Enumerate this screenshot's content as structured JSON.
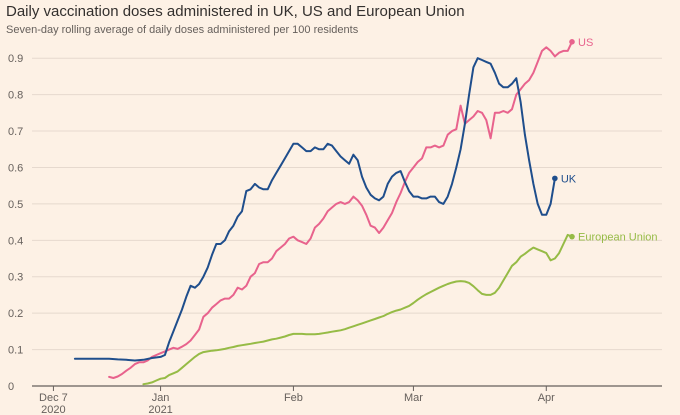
{
  "header": {
    "title": "Daily vaccination doses administered in UK, US and European Union",
    "subtitle": "Seven-day rolling average of daily doses administered per 100 residents"
  },
  "chart_data": {
    "type": "line",
    "title": "Daily vaccination doses administered in UK, US and European Union",
    "subtitle": "Seven-day rolling average of daily doses administered per 100 residents",
    "xlabel": "",
    "ylabel": "",
    "ylim": [
      0,
      0.95
    ],
    "yticks": [
      0,
      0.1,
      0.2,
      0.3,
      0.4,
      0.5,
      0.6,
      0.7,
      0.8,
      0.9
    ],
    "ytick_labels": [
      "0",
      "0.1",
      "0.2",
      "0.3",
      "0.4",
      "0.5",
      "0.6",
      "0.7",
      "0.8",
      "0.9"
    ],
    "xlim_days": [
      -30,
      117
    ],
    "x_unit": "days since 2021-01-01",
    "xticks": [
      {
        "day": -25,
        "line1": "Dec 7",
        "line2": "2020"
      },
      {
        "day": 0,
        "line1": "Jan",
        "line2": "2021"
      },
      {
        "day": 31,
        "line1": "Feb",
        "line2": ""
      },
      {
        "day": 59,
        "line1": "Mar",
        "line2": ""
      },
      {
        "day": 90,
        "line1": "Apr",
        "line2": ""
      }
    ],
    "grid": true,
    "legend": "direct labels at line ends",
    "series": [
      {
        "name": "US",
        "color": "#e8638d",
        "points": [
          [
            -12,
            0.025
          ],
          [
            -11,
            0.022
          ],
          [
            -10,
            0.026
          ],
          [
            -9,
            0.033
          ],
          [
            -8,
            0.042
          ],
          [
            -7,
            0.05
          ],
          [
            -6,
            0.06
          ],
          [
            -5,
            0.065
          ],
          [
            -4,
            0.065
          ],
          [
            -3,
            0.07
          ],
          [
            -2,
            0.08
          ],
          [
            -1,
            0.085
          ],
          [
            0,
            0.09
          ],
          [
            1,
            0.095
          ],
          [
            2,
            0.1
          ],
          [
            3,
            0.105
          ],
          [
            4,
            0.102
          ],
          [
            5,
            0.108
          ],
          [
            6,
            0.115
          ],
          [
            7,
            0.125
          ],
          [
            8,
            0.14
          ],
          [
            9,
            0.155
          ],
          [
            10,
            0.19
          ],
          [
            11,
            0.2
          ],
          [
            12,
            0.215
          ],
          [
            13,
            0.225
          ],
          [
            14,
            0.235
          ],
          [
            15,
            0.24
          ],
          [
            16,
            0.24
          ],
          [
            17,
            0.25
          ],
          [
            18,
            0.27
          ],
          [
            19,
            0.265
          ],
          [
            20,
            0.275
          ],
          [
            21,
            0.3
          ],
          [
            22,
            0.31
          ],
          [
            23,
            0.335
          ],
          [
            24,
            0.34
          ],
          [
            25,
            0.34
          ],
          [
            26,
            0.35
          ],
          [
            27,
            0.37
          ],
          [
            28,
            0.38
          ],
          [
            29,
            0.39
          ],
          [
            30,
            0.405
          ],
          [
            31,
            0.41
          ],
          [
            32,
            0.4
          ],
          [
            33,
            0.395
          ],
          [
            34,
            0.39
          ],
          [
            35,
            0.405
          ],
          [
            36,
            0.435
          ],
          [
            37,
            0.445
          ],
          [
            38,
            0.46
          ],
          [
            39,
            0.48
          ],
          [
            40,
            0.49
          ],
          [
            41,
            0.5
          ],
          [
            42,
            0.505
          ],
          [
            43,
            0.5
          ],
          [
            44,
            0.505
          ],
          [
            45,
            0.52
          ],
          [
            46,
            0.51
          ],
          [
            47,
            0.495
          ],
          [
            48,
            0.47
          ],
          [
            49,
            0.44
          ],
          [
            50,
            0.435
          ],
          [
            51,
            0.42
          ],
          [
            52,
            0.435
          ],
          [
            53,
            0.455
          ],
          [
            54,
            0.475
          ],
          [
            55,
            0.505
          ],
          [
            56,
            0.53
          ],
          [
            57,
            0.56
          ],
          [
            58,
            0.585
          ],
          [
            59,
            0.6
          ],
          [
            60,
            0.615
          ],
          [
            61,
            0.625
          ],
          [
            62,
            0.655
          ],
          [
            63,
            0.655
          ],
          [
            64,
            0.66
          ],
          [
            65,
            0.655
          ],
          [
            66,
            0.66
          ],
          [
            67,
            0.69
          ],
          [
            68,
            0.7
          ],
          [
            69,
            0.705
          ],
          [
            70,
            0.77
          ],
          [
            71,
            0.72
          ],
          [
            72,
            0.73
          ],
          [
            73,
            0.74
          ],
          [
            74,
            0.755
          ],
          [
            75,
            0.75
          ],
          [
            76,
            0.73
          ],
          [
            77,
            0.68
          ],
          [
            78,
            0.75
          ],
          [
            79,
            0.75
          ],
          [
            80,
            0.755
          ],
          [
            81,
            0.75
          ],
          [
            82,
            0.76
          ],
          [
            83,
            0.8
          ],
          [
            84,
            0.815
          ],
          [
            85,
            0.83
          ],
          [
            86,
            0.84
          ],
          [
            87,
            0.86
          ],
          [
            88,
            0.89
          ],
          [
            89,
            0.92
          ],
          [
            90,
            0.93
          ],
          [
            91,
            0.92
          ],
          [
            92,
            0.905
          ],
          [
            93,
            0.915
          ],
          [
            94,
            0.92
          ],
          [
            95,
            0.92
          ],
          [
            96,
            0.945
          ]
        ]
      },
      {
        "name": "UK",
        "color": "#1f4e8c",
        "points": [
          [
            -20,
            0.075
          ],
          [
            -18,
            0.075
          ],
          [
            -16,
            0.075
          ],
          [
            -14,
            0.075
          ],
          [
            -12,
            0.075
          ],
          [
            -10,
            0.073
          ],
          [
            -8,
            0.072
          ],
          [
            -6,
            0.07
          ],
          [
            -4,
            0.072
          ],
          [
            -2,
            0.077
          ],
          [
            0,
            0.08
          ],
          [
            1,
            0.085
          ],
          [
            2,
            0.12
          ],
          [
            3,
            0.15
          ],
          [
            4,
            0.18
          ],
          [
            5,
            0.21
          ],
          [
            6,
            0.245
          ],
          [
            7,
            0.275
          ],
          [
            8,
            0.27
          ],
          [
            9,
            0.28
          ],
          [
            10,
            0.3
          ],
          [
            11,
            0.325
          ],
          [
            12,
            0.36
          ],
          [
            13,
            0.39
          ],
          [
            14,
            0.39
          ],
          [
            15,
            0.4
          ],
          [
            16,
            0.425
          ],
          [
            17,
            0.44
          ],
          [
            18,
            0.465
          ],
          [
            19,
            0.48
          ],
          [
            20,
            0.535
          ],
          [
            21,
            0.54
          ],
          [
            22,
            0.555
          ],
          [
            23,
            0.545
          ],
          [
            24,
            0.54
          ],
          [
            25,
            0.54
          ],
          [
            26,
            0.565
          ],
          [
            27,
            0.585
          ],
          [
            28,
            0.605
          ],
          [
            29,
            0.625
          ],
          [
            30,
            0.645
          ],
          [
            31,
            0.665
          ],
          [
            32,
            0.665
          ],
          [
            33,
            0.655
          ],
          [
            34,
            0.645
          ],
          [
            35,
            0.645
          ],
          [
            36,
            0.655
          ],
          [
            37,
            0.65
          ],
          [
            38,
            0.65
          ],
          [
            39,
            0.665
          ],
          [
            40,
            0.66
          ],
          [
            41,
            0.645
          ],
          [
            42,
            0.63
          ],
          [
            43,
            0.62
          ],
          [
            44,
            0.61
          ],
          [
            45,
            0.635
          ],
          [
            46,
            0.62
          ],
          [
            47,
            0.575
          ],
          [
            48,
            0.545
          ],
          [
            49,
            0.525
          ],
          [
            50,
            0.515
          ],
          [
            51,
            0.51
          ],
          [
            52,
            0.52
          ],
          [
            53,
            0.555
          ],
          [
            54,
            0.575
          ],
          [
            55,
            0.585
          ],
          [
            56,
            0.59
          ],
          [
            57,
            0.56
          ],
          [
            58,
            0.535
          ],
          [
            59,
            0.52
          ],
          [
            60,
            0.52
          ],
          [
            61,
            0.515
          ],
          [
            62,
            0.515
          ],
          [
            63,
            0.52
          ],
          [
            64,
            0.52
          ],
          [
            65,
            0.505
          ],
          [
            66,
            0.5
          ],
          [
            67,
            0.52
          ],
          [
            68,
            0.555
          ],
          [
            69,
            0.6
          ],
          [
            70,
            0.65
          ],
          [
            71,
            0.72
          ],
          [
            72,
            0.8
          ],
          [
            73,
            0.875
          ],
          [
            74,
            0.9
          ],
          [
            75,
            0.895
          ],
          [
            76,
            0.89
          ],
          [
            77,
            0.885
          ],
          [
            78,
            0.86
          ],
          [
            79,
            0.83
          ],
          [
            80,
            0.82
          ],
          [
            81,
            0.82
          ],
          [
            82,
            0.83
          ],
          [
            83,
            0.845
          ],
          [
            84,
            0.78
          ],
          [
            85,
            0.69
          ],
          [
            86,
            0.62
          ],
          [
            87,
            0.555
          ],
          [
            88,
            0.5
          ],
          [
            89,
            0.47
          ],
          [
            90,
            0.47
          ],
          [
            91,
            0.5
          ],
          [
            92,
            0.57
          ]
        ]
      },
      {
        "name": "European Union",
        "color": "#96bb46",
        "points": [
          [
            -4,
            0.005
          ],
          [
            -3,
            0.007
          ],
          [
            -2,
            0.01
          ],
          [
            -1,
            0.015
          ],
          [
            0,
            0.02
          ],
          [
            1,
            0.022
          ],
          [
            2,
            0.03
          ],
          [
            3,
            0.035
          ],
          [
            4,
            0.04
          ],
          [
            5,
            0.05
          ],
          [
            6,
            0.06
          ],
          [
            7,
            0.07
          ],
          [
            8,
            0.08
          ],
          [
            9,
            0.088
          ],
          [
            10,
            0.093
          ],
          [
            11,
            0.095
          ],
          [
            12,
            0.097
          ],
          [
            13,
            0.098
          ],
          [
            14,
            0.1
          ],
          [
            15,
            0.102
          ],
          [
            16,
            0.105
          ],
          [
            17,
            0.107
          ],
          [
            18,
            0.11
          ],
          [
            19,
            0.112
          ],
          [
            20,
            0.114
          ],
          [
            21,
            0.116
          ],
          [
            22,
            0.118
          ],
          [
            23,
            0.12
          ],
          [
            24,
            0.122
          ],
          [
            25,
            0.125
          ],
          [
            26,
            0.128
          ],
          [
            27,
            0.13
          ],
          [
            28,
            0.133
          ],
          [
            29,
            0.136
          ],
          [
            30,
            0.14
          ],
          [
            31,
            0.143
          ],
          [
            32,
            0.143
          ],
          [
            33,
            0.143
          ],
          [
            34,
            0.142
          ],
          [
            35,
            0.142
          ],
          [
            36,
            0.142
          ],
          [
            37,
            0.143
          ],
          [
            38,
            0.145
          ],
          [
            39,
            0.147
          ],
          [
            40,
            0.149
          ],
          [
            41,
            0.151
          ],
          [
            42,
            0.153
          ],
          [
            43,
            0.156
          ],
          [
            44,
            0.16
          ],
          [
            45,
            0.164
          ],
          [
            46,
            0.168
          ],
          [
            47,
            0.172
          ],
          [
            48,
            0.176
          ],
          [
            49,
            0.18
          ],
          [
            50,
            0.184
          ],
          [
            51,
            0.188
          ],
          [
            52,
            0.192
          ],
          [
            53,
            0.198
          ],
          [
            54,
            0.203
          ],
          [
            55,
            0.207
          ],
          [
            56,
            0.21
          ],
          [
            57,
            0.215
          ],
          [
            58,
            0.22
          ],
          [
            59,
            0.228
          ],
          [
            60,
            0.237
          ],
          [
            61,
            0.245
          ],
          [
            62,
            0.252
          ],
          [
            63,
            0.258
          ],
          [
            64,
            0.264
          ],
          [
            65,
            0.27
          ],
          [
            66,
            0.275
          ],
          [
            67,
            0.28
          ],
          [
            68,
            0.284
          ],
          [
            69,
            0.287
          ],
          [
            70,
            0.288
          ],
          [
            71,
            0.287
          ],
          [
            72,
            0.283
          ],
          [
            73,
            0.274
          ],
          [
            74,
            0.263
          ],
          [
            75,
            0.253
          ],
          [
            76,
            0.25
          ],
          [
            77,
            0.25
          ],
          [
            78,
            0.256
          ],
          [
            79,
            0.27
          ],
          [
            80,
            0.29
          ],
          [
            81,
            0.31
          ],
          [
            82,
            0.33
          ],
          [
            83,
            0.34
          ],
          [
            84,
            0.355
          ],
          [
            85,
            0.363
          ],
          [
            86,
            0.372
          ],
          [
            87,
            0.38
          ],
          [
            88,
            0.375
          ],
          [
            89,
            0.37
          ],
          [
            90,
            0.365
          ],
          [
            91,
            0.345
          ],
          [
            92,
            0.35
          ],
          [
            93,
            0.365
          ],
          [
            94,
            0.39
          ],
          [
            95,
            0.415
          ],
          [
            96,
            0.41
          ]
        ]
      }
    ]
  }
}
